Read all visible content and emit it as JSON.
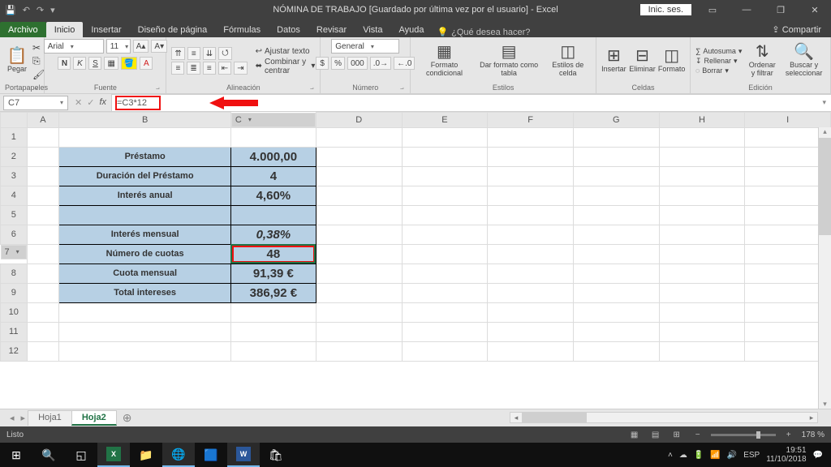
{
  "titlebar": {
    "title": "NÓMINA DE TRABAJO [Guardado por última vez por el usuario]  -  Excel",
    "signin": "Inic. ses."
  },
  "tabs": {
    "file": "Archivo",
    "items": [
      "Inicio",
      "Insertar",
      "Diseño de página",
      "Fórmulas",
      "Datos",
      "Revisar",
      "Vista",
      "Ayuda"
    ],
    "active": 0,
    "tellme": "¿Qué desea hacer?",
    "share": "Compartir"
  },
  "ribbon": {
    "clipboard": {
      "label": "Portapapeles",
      "paste": "Pegar"
    },
    "font": {
      "label": "Fuente",
      "family": "Arial",
      "size": "11",
      "btns": [
        "N",
        "K",
        "S"
      ]
    },
    "align": {
      "label": "Alineación",
      "wrap": "Ajustar texto",
      "merge": "Combinar y centrar"
    },
    "number": {
      "label": "Número",
      "format": "General"
    },
    "styles": {
      "label": "Estilos",
      "cond": "Formato condicional",
      "table_fmt": "Dar formato como tabla",
      "cell": "Estilos de celda"
    },
    "cells": {
      "label": "Celdas",
      "insert": "Insertar",
      "delete": "Eliminar",
      "format": "Formato"
    },
    "editing": {
      "label": "Edición",
      "sum": "Autosuma",
      "fill": "Rellenar",
      "clear": "Borrar",
      "sort": "Ordenar y filtrar",
      "find": "Buscar y seleccionar"
    }
  },
  "fbar": {
    "cell": "C7",
    "formula": "=C3*12"
  },
  "grid": {
    "cols": [
      "A",
      "B",
      "C",
      "D",
      "E",
      "F",
      "G",
      "H",
      "I"
    ],
    "sel_col": "C",
    "sel_row": 7,
    "table": {
      "bgcolor": "#b7d0e4",
      "border": "#000000",
      "rows": [
        {
          "r": 2,
          "label": "Préstamo",
          "value": "4.000,00"
        },
        {
          "r": 3,
          "label": "Duración del Préstamo",
          "value": "4"
        },
        {
          "r": 4,
          "label": "Interés anual",
          "value": "4,60%"
        },
        {
          "r": 5,
          "label": "",
          "value": ""
        },
        {
          "r": 6,
          "label": "Interés mensual",
          "value": "0,38%",
          "italic": true
        },
        {
          "r": 7,
          "label": "Número de cuotas",
          "value": "48",
          "selected": true,
          "highlight": true
        },
        {
          "r": 8,
          "label": "Cuota mensual",
          "value": "91,39 €"
        },
        {
          "r": 9,
          "label": "Total intereses",
          "value": "386,92 €"
        }
      ]
    },
    "blank_rows": [
      1,
      10,
      11,
      12
    ]
  },
  "sheets": {
    "items": [
      "Hoja1",
      "Hoja2"
    ],
    "active": 1
  },
  "status": {
    "ready": "Listo",
    "zoom": "178 %"
  },
  "taskbar": {
    "time": "19:51",
    "date": "11/10/2018"
  },
  "highlight_color": "#f01010"
}
